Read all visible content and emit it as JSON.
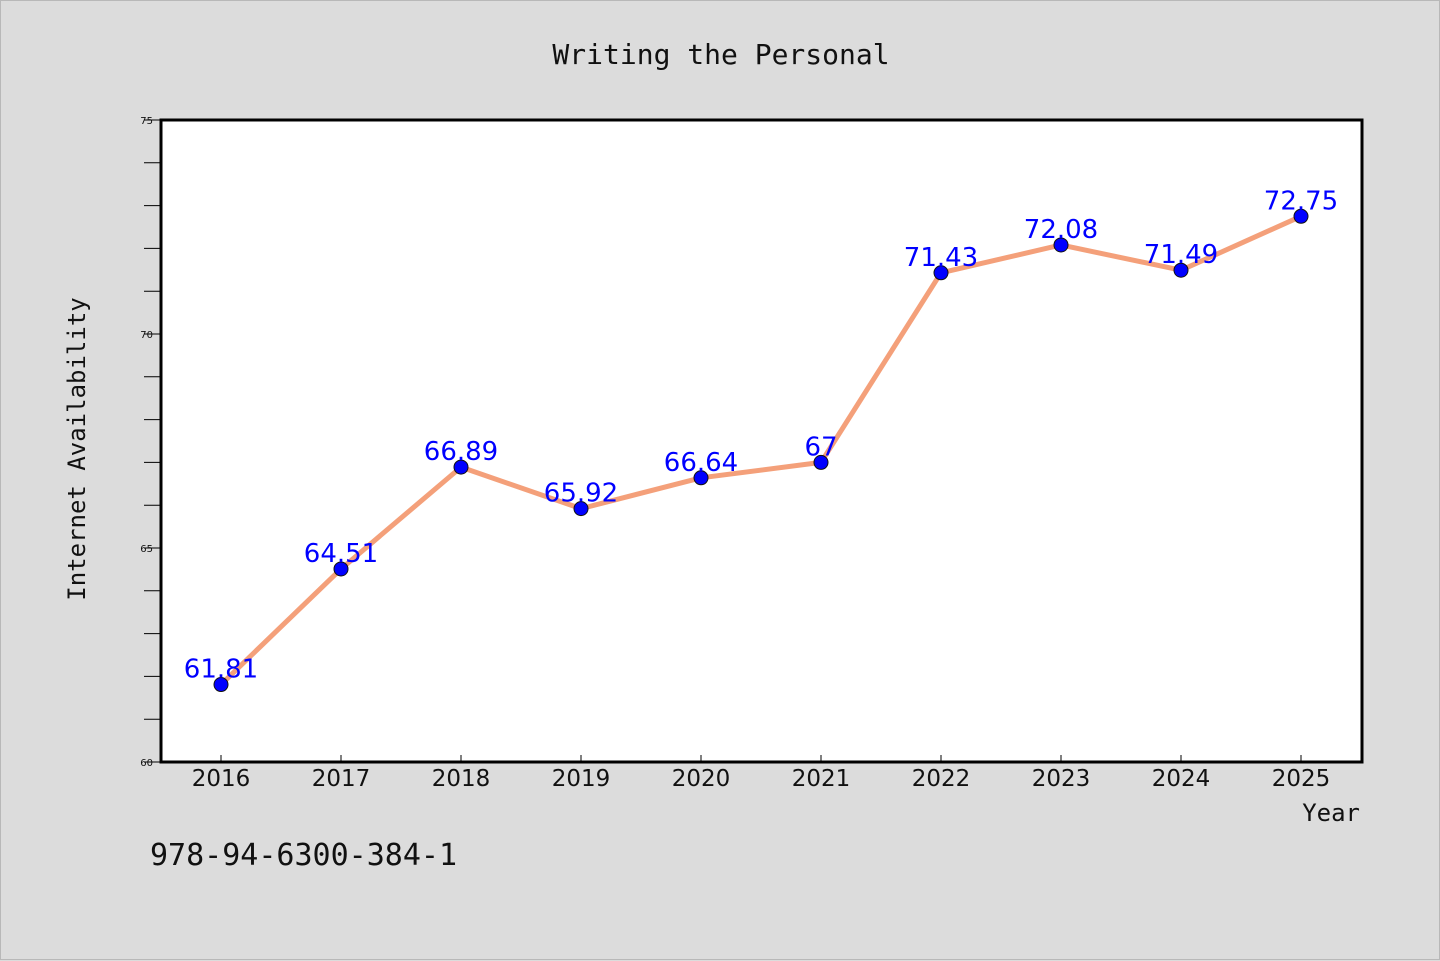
{
  "chart_data": {
    "type": "line",
    "title": "Writing the Personal",
    "xlabel": "Year",
    "ylabel": "Internet Availability",
    "x": [
      "2016",
      "2017",
      "2018",
      "2019",
      "2020",
      "2021",
      "2022",
      "2023",
      "2024",
      "2025"
    ],
    "series": [
      {
        "values": [
          61.81,
          64.51,
          66.89,
          65.92,
          66.64,
          67,
          71.43,
          72.08,
          71.49,
          72.75
        ],
        "labels": [
          "61.81",
          "64.51",
          "66.89",
          "65.92",
          "66.64",
          "67",
          "71.43",
          "72.08",
          "71.49",
          "72.75"
        ],
        "line_color": "#f4a07a",
        "marker_color": "#0000ff"
      }
    ],
    "ylim": [
      60,
      75
    ],
    "y_ticks": [
      "60",
      "65",
      "70",
      "75"
    ],
    "grid": false,
    "legend": "none"
  },
  "footer": {
    "isbn": "978-94-6300-384-1"
  }
}
